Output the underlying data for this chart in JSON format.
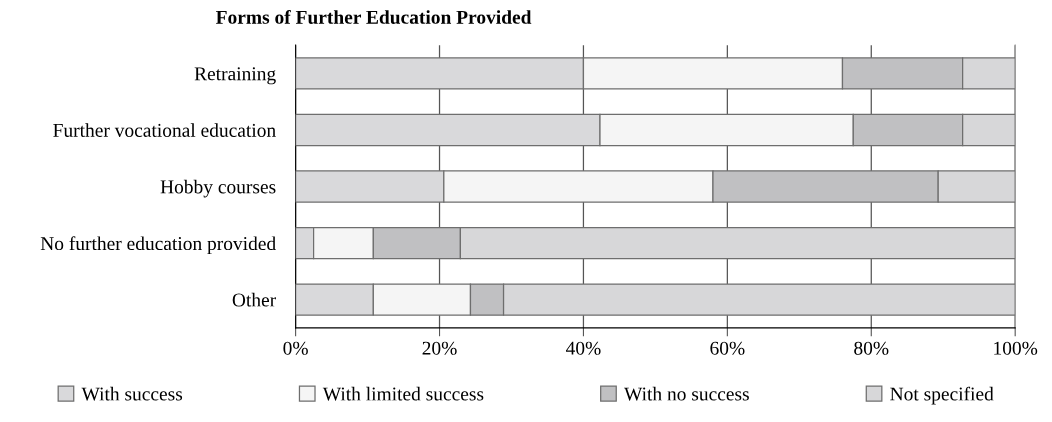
{
  "chart_data": {
    "type": "bar",
    "orientation": "horizontal",
    "stacked": true,
    "title": "Forms of Further Education Provided",
    "categories": [
      "Retraining",
      "Further vocational education",
      "Hobby courses",
      "No further education provided",
      "Other"
    ],
    "series": [
      {
        "name": "With success",
        "color": "#d9d9db",
        "values": [
          40,
          42.3,
          20.6,
          2.5,
          10.8
        ]
      },
      {
        "name": "With limited success",
        "color": "#f5f5f5",
        "values": [
          36,
          35.2,
          37.4,
          8.3,
          13.5
        ]
      },
      {
        "name": "With no success",
        "color": "#c0c0c2",
        "values": [
          16.7,
          15.2,
          31.3,
          12.1,
          4.6
        ]
      },
      {
        "name": "Not specified",
        "color": "#d7d7d9",
        "values": [
          7.3,
          7.3,
          10.7,
          77.1,
          71.1
        ]
      }
    ],
    "xlim": [
      0,
      100
    ],
    "xticks": [
      {
        "value": 0,
        "label": "0%"
      },
      {
        "value": 20,
        "label": "20%"
      },
      {
        "value": 40,
        "label": "40%"
      },
      {
        "value": 60,
        "label": "60%"
      },
      {
        "value": 80,
        "label": "80%"
      },
      {
        "value": 100,
        "label": "100%"
      }
    ],
    "grid": "x",
    "legend": "bottom"
  }
}
